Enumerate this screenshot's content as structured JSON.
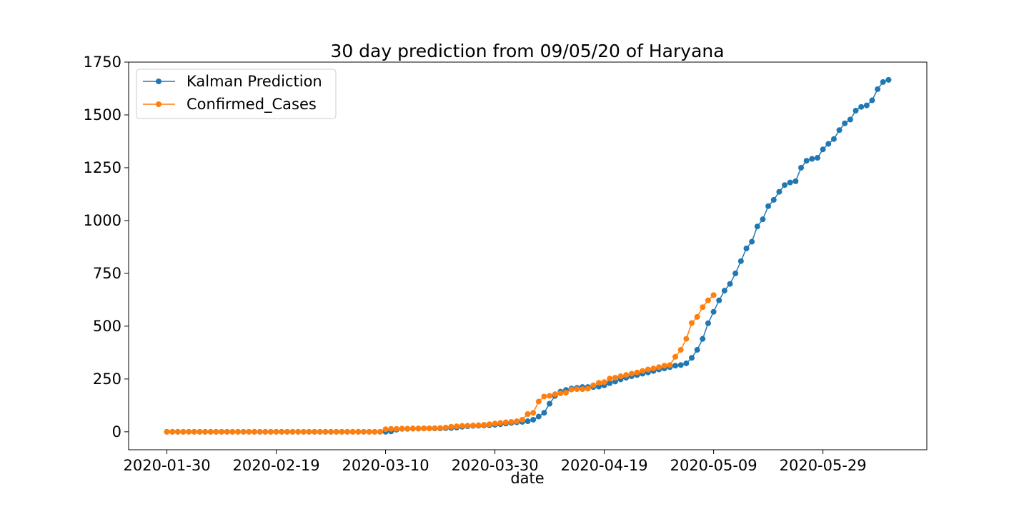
{
  "chart_data": {
    "type": "line",
    "title": "30 day prediction from 09/05/20 of Haryana",
    "xlabel": "date",
    "ylabel": "",
    "x_axis_type": "date",
    "x_start": "2020-01-30",
    "xlim": [
      "2020-01-23",
      "2020-06-17"
    ],
    "ylim": [
      -85,
      1750
    ],
    "x_ticks": [
      "2020-01-30",
      "2020-02-19",
      "2020-03-10",
      "2020-03-30",
      "2020-04-19",
      "2020-05-09",
      "2020-05-29"
    ],
    "y_ticks": [
      0,
      250,
      500,
      750,
      1000,
      1250,
      1500,
      1750
    ],
    "grid": false,
    "legend_position": "top-left",
    "series": [
      {
        "name": "Kalman Prediction",
        "color": "#1f77b4",
        "marker": "circle",
        "values": [
          0,
          0,
          0,
          0,
          0,
          0,
          0,
          0,
          0,
          0,
          0,
          0,
          0,
          0,
          0,
          0,
          0,
          0,
          0,
          0,
          0,
          0,
          0,
          0,
          0,
          0,
          0,
          0,
          0,
          0,
          0,
          0,
          0,
          0,
          0,
          0,
          0,
          0,
          0,
          0,
          0,
          2,
          10,
          14,
          14,
          15,
          15,
          16,
          16,
          16,
          16,
          17,
          18,
          20,
          24,
          26,
          28,
          29,
          30,
          31,
          33,
          36,
          39,
          42,
          45,
          47,
          50,
          57,
          72,
          90,
          133,
          170,
          190,
          198,
          205,
          208,
          212,
          212,
          212,
          214,
          220,
          230,
          238,
          248,
          256,
          263,
          269,
          275,
          281,
          288,
          295,
          300,
          306,
          313,
          316,
          324,
          350,
          388,
          440,
          514,
          568,
          622,
          668,
          700,
          750,
          808,
          868,
          900,
          972,
          1006,
          1068,
          1098,
          1136,
          1168,
          1180,
          1186,
          1250,
          1283,
          1292,
          1297,
          1337,
          1363,
          1386,
          1428,
          1460,
          1478,
          1520,
          1538,
          1545,
          1569,
          1622,
          1656,
          1666
        ]
      },
      {
        "name": "Confirmed_Cases",
        "color": "#ff7f0e",
        "marker": "circle",
        "values": [
          0,
          0,
          0,
          0,
          0,
          0,
          0,
          0,
          0,
          0,
          0,
          0,
          0,
          0,
          0,
          0,
          0,
          0,
          0,
          0,
          0,
          0,
          0,
          0,
          0,
          0,
          0,
          0,
          0,
          0,
          0,
          0,
          0,
          0,
          0,
          0,
          0,
          0,
          0,
          0,
          12,
          14,
          14,
          15,
          15,
          16,
          16,
          16,
          16,
          17,
          18,
          20,
          24,
          26,
          28,
          29,
          30,
          31,
          33,
          36,
          39,
          42,
          45,
          47,
          50,
          57,
          84,
          90,
          143,
          167,
          170,
          178,
          182,
          185,
          200,
          202,
          202,
          204,
          220,
          232,
          235,
          252,
          256,
          263,
          269,
          275,
          281,
          288,
          295,
          300,
          306,
          313,
          316,
          355,
          388,
          440,
          515,
          544,
          590,
          622,
          647
        ]
      }
    ]
  }
}
